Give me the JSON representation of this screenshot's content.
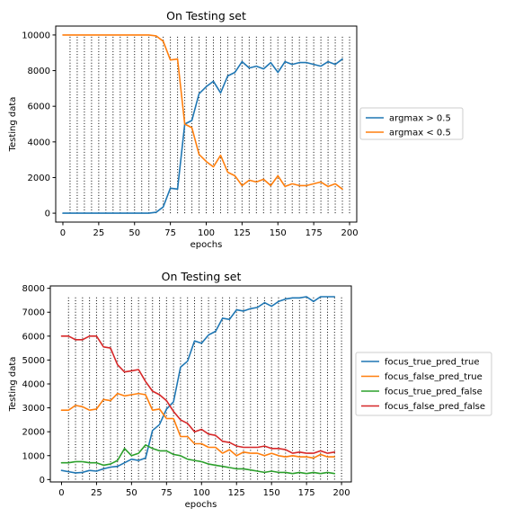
{
  "chart_data": [
    {
      "type": "line",
      "title": "On Testing set",
      "xlabel": "epochs",
      "ylabel": "Testing data",
      "xlim": [
        -5,
        205
      ],
      "ylim": [
        -500,
        10500
      ],
      "xticks": [
        "0",
        "25",
        "50",
        "75",
        "100",
        "125",
        "150",
        "175",
        "200"
      ],
      "xtick_values": [
        0,
        25,
        50,
        75,
        100,
        125,
        150,
        175,
        200
      ],
      "yticks": [
        "0",
        "2000",
        "4000",
        "6000",
        "8000",
        "10000"
      ],
      "ytick_values": [
        0,
        2000,
        4000,
        6000,
        8000,
        10000
      ],
      "vgrid": {
        "start": 5,
        "end": 200,
        "step": 5,
        "ymin": 0,
        "ymax": 10000,
        "style": "dotted"
      },
      "legend": "outside-right",
      "x": [
        0,
        5,
        10,
        15,
        20,
        25,
        30,
        35,
        40,
        45,
        50,
        55,
        60,
        65,
        70,
        75,
        80,
        85,
        90,
        95,
        100,
        105,
        110,
        115,
        120,
        125,
        130,
        135,
        140,
        145,
        150,
        155,
        160,
        165,
        170,
        175,
        180,
        185,
        190,
        195
      ],
      "series": [
        {
          "name": "argmax > 0.5",
          "color": "#1f77b4",
          "values": [
            0,
            0,
            0,
            0,
            0,
            0,
            0,
            0,
            0,
            0,
            0,
            0,
            0,
            50,
            350,
            1400,
            1350,
            5000,
            5200,
            6700,
            7100,
            7400,
            6750,
            7700,
            7900,
            8500,
            8150,
            8250,
            8100,
            8450,
            7900,
            8500,
            8350,
            8450,
            8450,
            8350,
            8250,
            8500,
            8350,
            8650
          ]
        },
        {
          "name": "argmax < 0.5",
          "color": "#ff7f0e",
          "values": [
            10000,
            10000,
            10000,
            10000,
            10000,
            10000,
            10000,
            10000,
            10000,
            10000,
            10000,
            10000,
            10000,
            9950,
            9650,
            8600,
            8650,
            5000,
            4800,
            3300,
            2900,
            2600,
            3250,
            2300,
            2100,
            1550,
            1850,
            1750,
            1900,
            1550,
            2100,
            1500,
            1650,
            1550,
            1550,
            1650,
            1750,
            1500,
            1650,
            1350
          ]
        }
      ]
    },
    {
      "type": "line",
      "title": "On Testing set",
      "xlabel": "epochs",
      "ylabel": "Testing data",
      "xlim": [
        -8,
        207
      ],
      "ylim": [
        -100,
        8100
      ],
      "xticks": [
        "0",
        "25",
        "50",
        "75",
        "100",
        "125",
        "150",
        "175",
        "200"
      ],
      "xtick_values": [
        0,
        25,
        50,
        75,
        100,
        125,
        150,
        175,
        200
      ],
      "yticks": [
        "0",
        "1000",
        "2000",
        "3000",
        "4000",
        "5000",
        "6000",
        "7000",
        "8000"
      ],
      "ytick_values": [
        0,
        1000,
        2000,
        3000,
        4000,
        5000,
        6000,
        7000,
        8000
      ],
      "vgrid": {
        "start": 5,
        "end": 200,
        "step": 5,
        "ymin": 0,
        "ymax": 7650,
        "style": "dotted"
      },
      "legend": "outside-right",
      "x": [
        0,
        5,
        10,
        15,
        20,
        25,
        30,
        35,
        40,
        45,
        50,
        55,
        60,
        65,
        70,
        75,
        80,
        85,
        90,
        95,
        100,
        105,
        110,
        115,
        120,
        125,
        130,
        135,
        140,
        145,
        150,
        155,
        160,
        165,
        170,
        175,
        180,
        185,
        190,
        195
      ],
      "series": [
        {
          "name": "focus_true_pred_true",
          "color": "#1f77b4",
          "values": [
            380,
            330,
            280,
            300,
            380,
            350,
            450,
            520,
            550,
            700,
            850,
            800,
            900,
            2050,
            2300,
            2950,
            3250,
            4700,
            4950,
            5800,
            5700,
            6050,
            6200,
            6750,
            6700,
            7100,
            7050,
            7150,
            7200,
            7400,
            7250,
            7450,
            7550,
            7600,
            7600,
            7650,
            7450,
            7650,
            7650,
            7650
          ]
        },
        {
          "name": "focus_false_pred_true",
          "color": "#ff7f0e",
          "values": [
            2900,
            2900,
            3100,
            3050,
            2900,
            2950,
            3350,
            3300,
            3600,
            3500,
            3550,
            3600,
            3550,
            2900,
            2950,
            2550,
            2550,
            1800,
            1800,
            1500,
            1500,
            1350,
            1350,
            1100,
            1250,
            1000,
            1150,
            1100,
            1100,
            1000,
            1100,
            1000,
            950,
            1000,
            950,
            950,
            900,
            1050,
            950,
            950
          ]
        },
        {
          "name": "focus_true_pred_false",
          "color": "#2ca02c",
          "values": [
            700,
            700,
            750,
            750,
            700,
            700,
            600,
            650,
            800,
            1300,
            1000,
            1100,
            1450,
            1300,
            1200,
            1200,
            1050,
            1000,
            850,
            800,
            750,
            650,
            600,
            550,
            500,
            450,
            450,
            400,
            350,
            300,
            350,
            300,
            300,
            250,
            300,
            250,
            300,
            250,
            300,
            250
          ]
        },
        {
          "name": "focus_false_pred_false",
          "color": "#d62728",
          "values": [
            6000,
            6000,
            5850,
            5850,
            6000,
            6000,
            5550,
            5500,
            4800,
            4500,
            4550,
            4600,
            4100,
            3700,
            3550,
            3300,
            2850,
            2500,
            2350,
            2000,
            2100,
            1900,
            1850,
            1600,
            1550,
            1400,
            1350,
            1350,
            1350,
            1400,
            1300,
            1300,
            1250,
            1100,
            1150,
            1100,
            1100,
            1200,
            1100,
            1150
          ]
        }
      ]
    }
  ]
}
